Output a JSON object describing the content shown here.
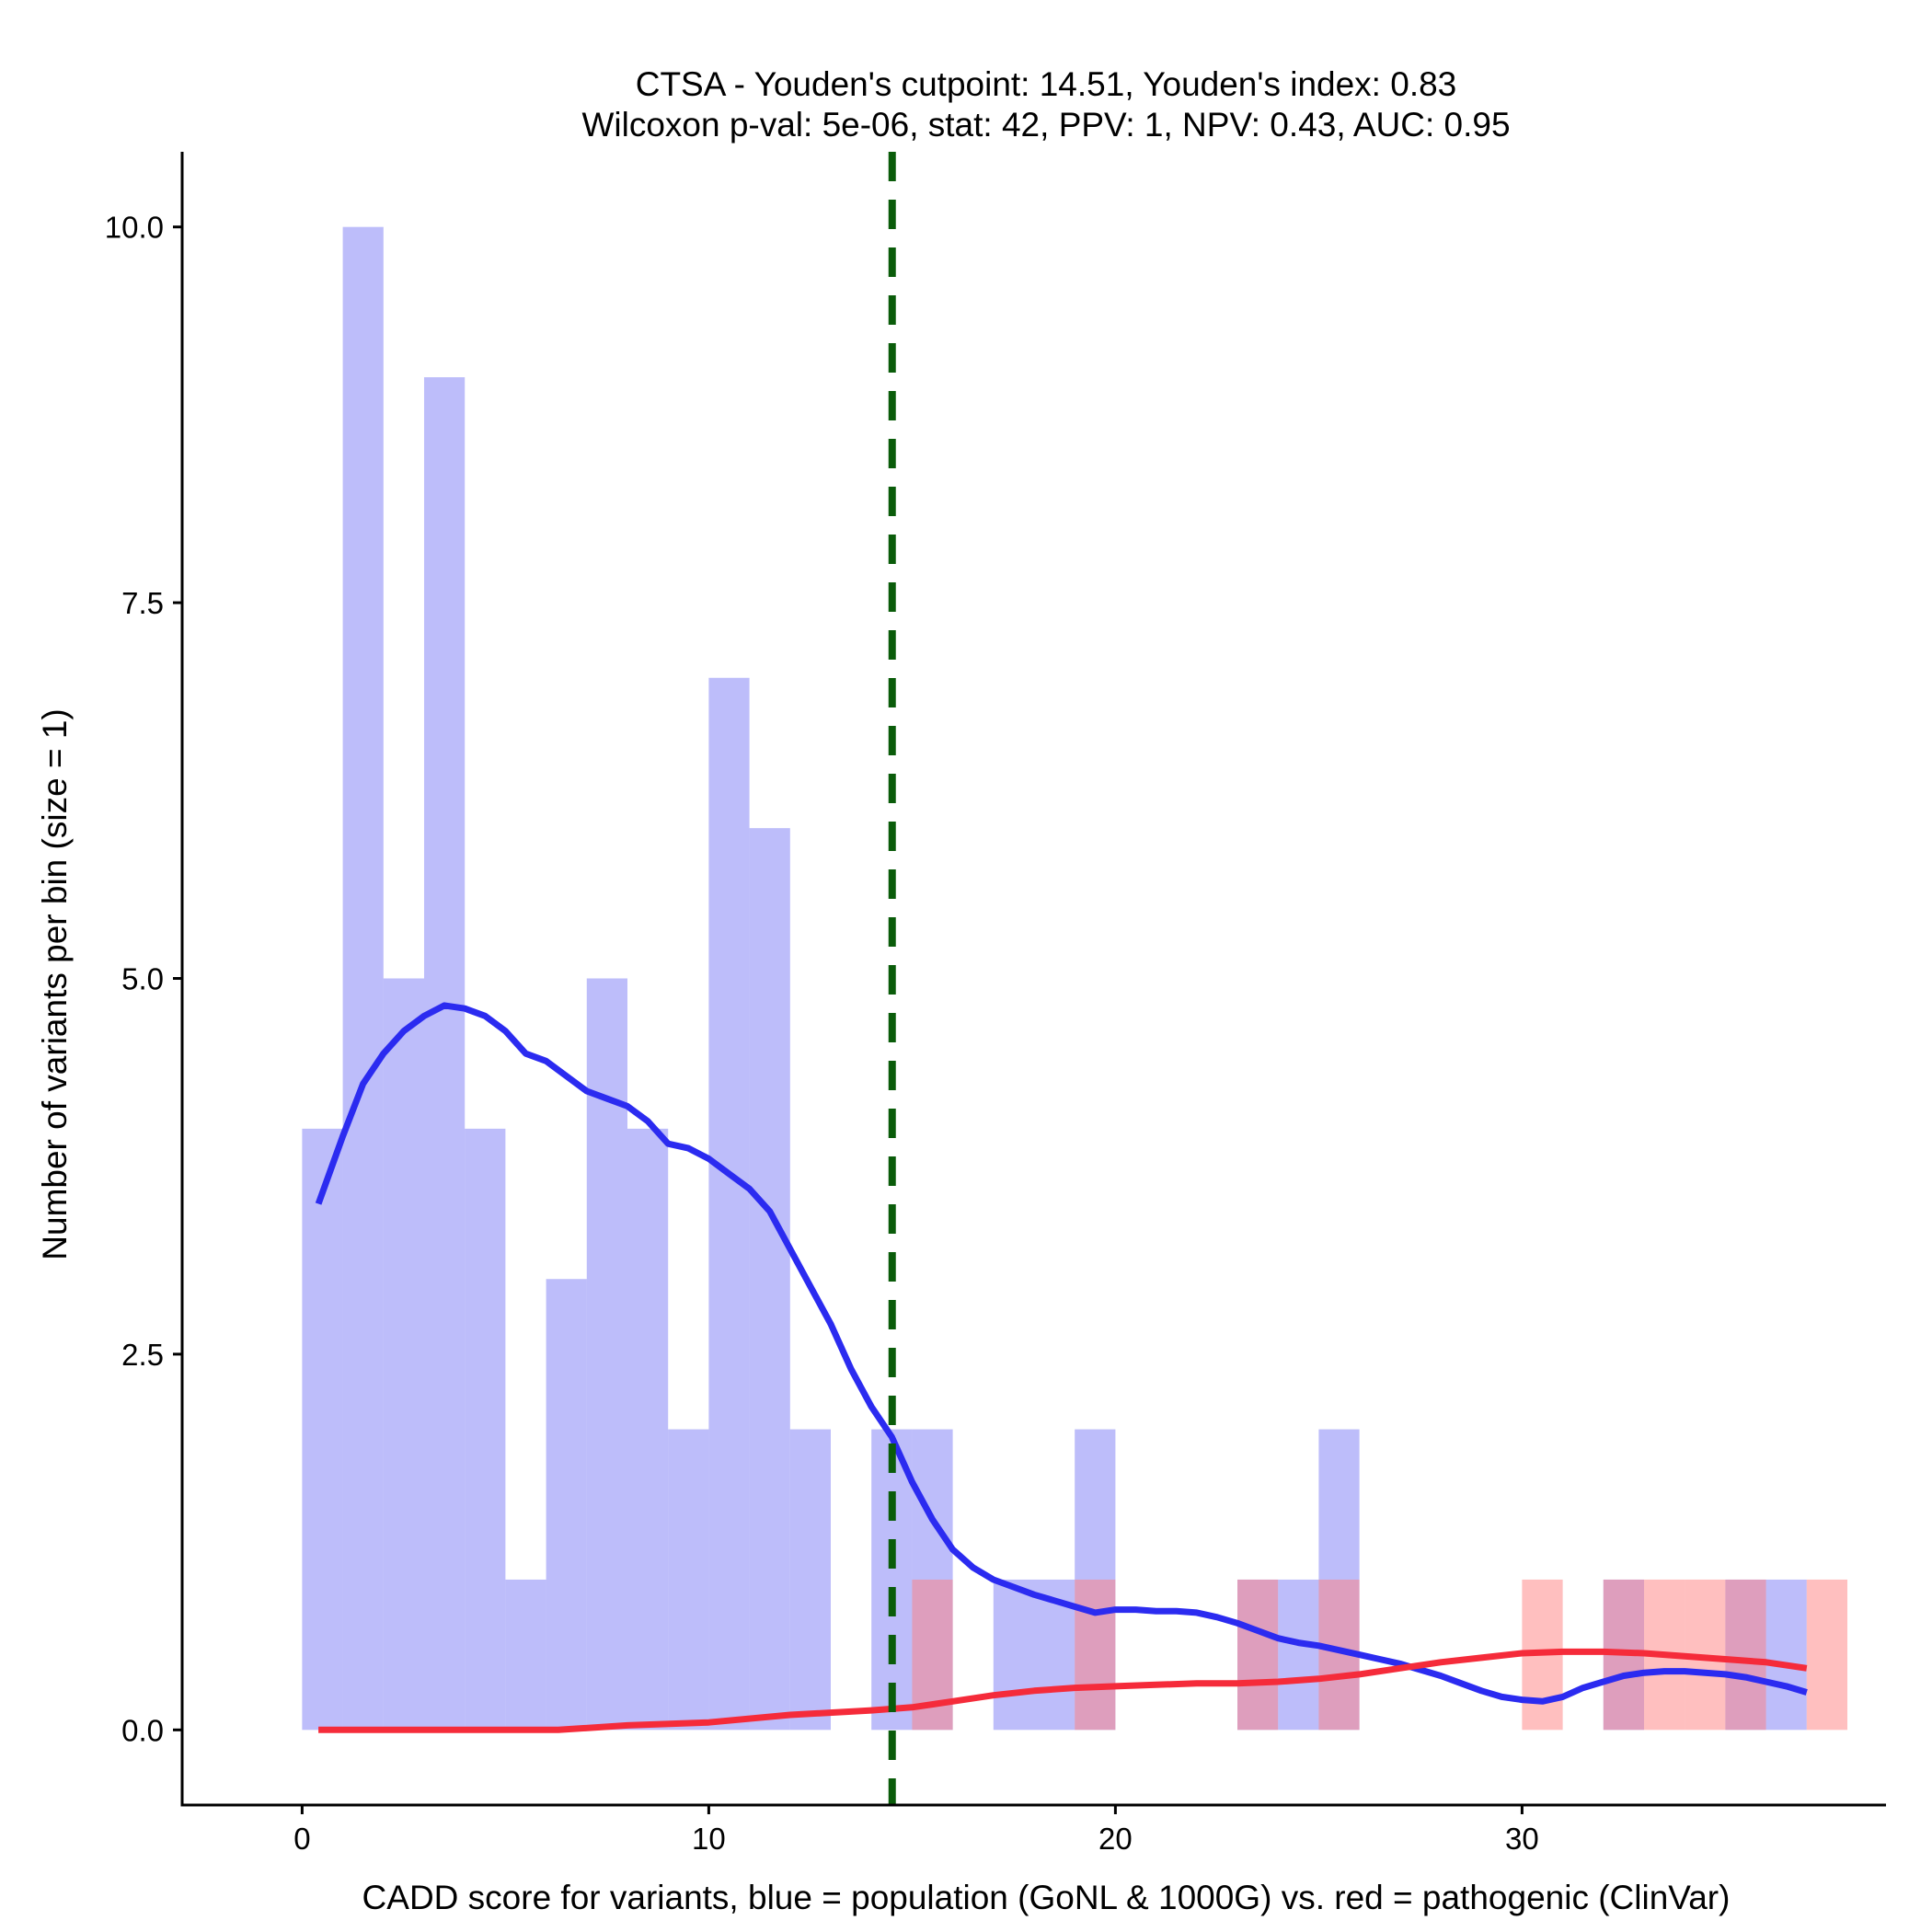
{
  "chart_data": {
    "type": "histogram",
    "title_line1": "CTSA - Youden's cutpoint: 14.51, Youden's index: 0.83",
    "title_line2": "Wilcoxon p-val: 5e-06, stat: 42, PPV: 1, NPV: 0.43, AUC: 0.95",
    "xlabel": "CADD score for variants, blue = population (GoNL & 1000G) vs. red = pathogenic (ClinVar)",
    "ylabel": "Number of variants per bin (size = 1)",
    "xlim": [
      -2.95,
      38.95
    ],
    "ylim": [
      -0.5,
      10.5
    ],
    "x_ticks": [
      0,
      10,
      20,
      30
    ],
    "y_ticks": [
      0.0,
      2.5,
      5.0,
      7.5,
      10.0
    ],
    "y_tick_labels": [
      "0.0",
      "2.5",
      "5.0",
      "7.5",
      "10.0"
    ],
    "cutpoint": 14.51,
    "bin_size": 1,
    "series": [
      {
        "name": "population (GoNL & 1000G)",
        "color": "#7b7bf5",
        "bins": [
          {
            "x0": 0,
            "count": 4
          },
          {
            "x0": 1,
            "count": 10
          },
          {
            "x0": 2,
            "count": 5
          },
          {
            "x0": 3,
            "count": 9
          },
          {
            "x0": 4,
            "count": 4
          },
          {
            "x0": 5,
            "count": 1
          },
          {
            "x0": 6,
            "count": 3
          },
          {
            "x0": 7,
            "count": 5
          },
          {
            "x0": 8,
            "count": 4
          },
          {
            "x0": 9,
            "count": 2
          },
          {
            "x0": 10,
            "count": 7
          },
          {
            "x0": 11,
            "count": 6
          },
          {
            "x0": 12,
            "count": 2
          },
          {
            "x0": 14,
            "count": 2
          },
          {
            "x0": 15,
            "count": 2
          },
          {
            "x0": 17,
            "count": 1
          },
          {
            "x0": 18,
            "count": 1
          },
          {
            "x0": 19,
            "count": 2
          },
          {
            "x0": 23,
            "count": 1
          },
          {
            "x0": 24,
            "count": 1
          },
          {
            "x0": 25,
            "count": 2
          },
          {
            "x0": 32,
            "count": 1
          },
          {
            "x0": 35,
            "count": 1
          },
          {
            "x0": 36,
            "count": 1
          }
        ],
        "density": {
          "x": [
            0.4,
            1,
            1.5,
            2,
            2.5,
            3,
            3.5,
            4,
            4.5,
            5,
            5.5,
            6,
            6.5,
            7,
            7.5,
            8,
            8.5,
            9,
            9.5,
            10,
            10.5,
            11,
            11.5,
            12,
            12.5,
            13,
            13.5,
            14,
            14.5,
            15,
            15.5,
            16,
            16.5,
            17,
            17.5,
            18,
            18.5,
            19,
            19.5,
            20,
            20.5,
            21,
            21.5,
            22,
            22.5,
            23,
            23.5,
            24,
            24.5,
            25,
            25.5,
            26,
            26.5,
            27,
            27.5,
            28,
            28.5,
            29,
            29.5,
            30,
            30.5,
            31,
            31.5,
            32,
            32.5,
            33,
            33.5,
            34,
            34.5,
            35,
            35.5,
            36,
            36.5,
            37
          ],
          "y": [
            3.5,
            3.95,
            4.3,
            4.5,
            4.65,
            4.75,
            4.82,
            4.8,
            4.75,
            4.65,
            4.5,
            4.45,
            4.35,
            4.25,
            4.2,
            4.15,
            4.05,
            3.9,
            3.87,
            3.8,
            3.7,
            3.6,
            3.45,
            3.2,
            2.95,
            2.7,
            2.4,
            2.15,
            1.95,
            1.65,
            1.4,
            1.2,
            1.08,
            1.0,
            0.95,
            0.9,
            0.86,
            0.82,
            0.78,
            0.8,
            0.8,
            0.79,
            0.79,
            0.78,
            0.75,
            0.71,
            0.66,
            0.61,
            0.58,
            0.56,
            0.53,
            0.5,
            0.47,
            0.44,
            0.4,
            0.36,
            0.31,
            0.26,
            0.22,
            0.2,
            0.19,
            0.22,
            0.28,
            0.32,
            0.36,
            0.38,
            0.39,
            0.39,
            0.38,
            0.37,
            0.35,
            0.32,
            0.29,
            0.25
          ]
        }
      },
      {
        "name": "pathogenic (ClinVar)",
        "color": "#ff8080",
        "bins": [
          {
            "x0": 15,
            "count": 1
          },
          {
            "x0": 19,
            "count": 1
          },
          {
            "x0": 23,
            "count": 1
          },
          {
            "x0": 25,
            "count": 1
          },
          {
            "x0": 30,
            "count": 1
          },
          {
            "x0": 32,
            "count": 1
          },
          {
            "x0": 33,
            "count": 1
          },
          {
            "x0": 34,
            "count": 1
          },
          {
            "x0": 35,
            "count": 1
          },
          {
            "x0": 37,
            "count": 1
          }
        ],
        "density": {
          "x": [
            0.4,
            2,
            4,
            6,
            6.3,
            8,
            10,
            12,
            14,
            15,
            16,
            17,
            18,
            19,
            20,
            21,
            22,
            23,
            24,
            25,
            26,
            27,
            28,
            29,
            30,
            31,
            32,
            33,
            34,
            35,
            36,
            37
          ],
          "y": [
            0.0,
            0.0,
            0.0,
            0.0,
            0.0,
            0.03,
            0.05,
            0.1,
            0.13,
            0.15,
            0.19,
            0.23,
            0.26,
            0.28,
            0.29,
            0.3,
            0.31,
            0.31,
            0.32,
            0.34,
            0.37,
            0.41,
            0.45,
            0.48,
            0.51,
            0.52,
            0.52,
            0.51,
            0.49,
            0.47,
            0.45,
            0.41
          ]
        }
      }
    ]
  }
}
